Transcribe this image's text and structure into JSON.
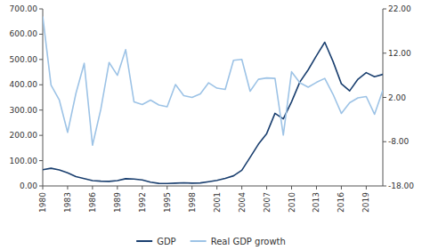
{
  "chart_data": {
    "type": "line",
    "x": [
      1980,
      1981,
      1982,
      1983,
      1984,
      1985,
      1986,
      1987,
      1988,
      1989,
      1990,
      1991,
      1992,
      1993,
      1994,
      1995,
      1996,
      1997,
      1998,
      1999,
      2000,
      2001,
      2002,
      2003,
      2004,
      2005,
      2006,
      2007,
      2008,
      2009,
      2010,
      2011,
      2012,
      2013,
      2014,
      2015,
      2016,
      2017,
      2018,
      2019,
      2020,
      2021
    ],
    "series": [
      {
        "name": "GDP",
        "color": "#1a3f6f",
        "values": [
          64.2,
          70.0,
          63.0,
          52.0,
          37.0,
          29.0,
          21.0,
          19.0,
          18.0,
          21.0,
          28.5,
          27.0,
          24.0,
          15.0,
          10.0,
          9.5,
          11.0,
          12.5,
          11.0,
          12.0,
          17.0,
          22.0,
          30.0,
          40.0,
          62.0,
          113.0,
          165.0,
          207.0,
          287.0,
          265.0,
          333.0,
          411.0,
          459.0,
          515.0,
          568.0,
          492.0,
          404.0,
          376.0,
          422.0,
          448.0,
          432.0,
          441.0
        ]
      },
      {
        "name": "Real GDP growth",
        "color": "#9dc3e6",
        "axis": "y2",
        "values": [
          20.3,
          4.8,
          1.4,
          -5.9,
          2.9,
          9.7,
          -8.8,
          -0.7,
          9.9,
          7.0,
          12.8,
          1.0,
          0.4,
          1.4,
          0.3,
          -0.1,
          4.9,
          2.4,
          2.0,
          2.8,
          5.3,
          4.1,
          3.8,
          10.4,
          10.6,
          3.4,
          6.1,
          6.4,
          6.3,
          -6.5,
          7.8,
          5.3,
          4.3,
          5.4,
          6.3,
          2.7,
          -1.6,
          0.8,
          1.9,
          2.2,
          -1.8,
          3.6
        ]
      }
    ],
    "xlim": [
      1980,
      2021
    ],
    "xticks": [
      1980,
      1983,
      1986,
      1989,
      1992,
      1995,
      1998,
      2001,
      2004,
      2007,
      2010,
      2013,
      2016,
      2019
    ],
    "ylim": [
      0,
      700
    ],
    "yticks": [
      {
        "value": 0,
        "label": "0.00"
      },
      {
        "value": 100,
        "label": "100.00"
      },
      {
        "value": 200,
        "label": "200.00"
      },
      {
        "value": 300,
        "label": "300.00"
      },
      {
        "value": 400,
        "label": "400.00"
      },
      {
        "value": 500,
        "label": "500.00"
      },
      {
        "value": 600,
        "label": "600.00"
      },
      {
        "value": 700,
        "label": "700.00"
      }
    ],
    "y2lim": [
      -18,
      22
    ],
    "y2ticks": [
      {
        "value": -18,
        "label": "-18.00"
      },
      {
        "value": -8,
        "label": "-8.00"
      },
      {
        "value": 2,
        "label": "2.00"
      },
      {
        "value": 12,
        "label": "12.00"
      },
      {
        "value": 22,
        "label": "22.00"
      }
    ],
    "grid": false,
    "legend": "bottom"
  }
}
